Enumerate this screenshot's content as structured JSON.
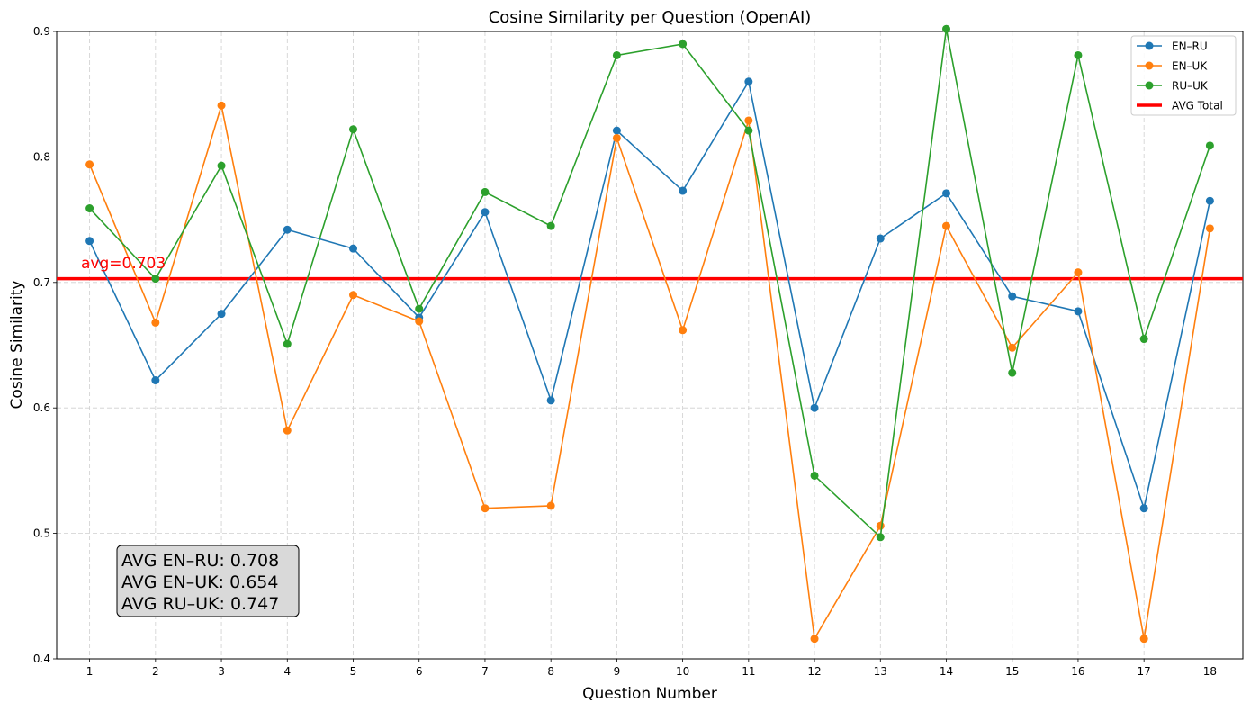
{
  "chart_data": {
    "type": "line",
    "title": "Cosine Similarity per Question (OpenAI)",
    "xlabel": "Question Number",
    "ylabel": "Cosine Similarity",
    "x": [
      1,
      2,
      3,
      4,
      5,
      6,
      7,
      8,
      9,
      10,
      11,
      12,
      13,
      14,
      15,
      16,
      17,
      18
    ],
    "xlim": [
      0.5,
      18.5
    ],
    "ylim": [
      0.4,
      0.9
    ],
    "yticks": [
      0.4,
      0.5,
      0.6,
      0.7,
      0.8,
      0.9
    ],
    "ytick_labels": [
      "0.4",
      "0.5",
      "0.6",
      "0.7",
      "0.8",
      "0.9"
    ],
    "grid": true,
    "legend_position": "top-right",
    "series": [
      {
        "name": "EN–RU",
        "color": "#1f77b4",
        "values": [
          0.733,
          0.622,
          0.675,
          0.742,
          0.727,
          0.672,
          0.756,
          0.606,
          0.821,
          0.773,
          0.86,
          0.6,
          0.735,
          0.771,
          0.689,
          0.677,
          0.52,
          0.765
        ]
      },
      {
        "name": "EN–UK",
        "color": "#ff7f0e",
        "values": [
          0.794,
          0.668,
          0.841,
          0.582,
          0.69,
          0.669,
          0.52,
          0.522,
          0.815,
          0.662,
          0.829,
          0.416,
          0.506,
          0.745,
          0.648,
          0.708,
          0.416,
          0.743
        ]
      },
      {
        "name": "RU–UK",
        "color": "#2ca02c",
        "values": [
          0.759,
          0.703,
          0.793,
          0.651,
          0.822,
          0.679,
          0.772,
          0.745,
          0.881,
          0.89,
          0.821,
          0.546,
          0.497,
          0.902,
          0.628,
          0.881,
          0.655,
          0.809
        ]
      }
    ],
    "avg_line": {
      "name": "AVG Total",
      "value": 0.703,
      "label": "avg=0.703",
      "color": "#ff0000"
    },
    "stats_box": {
      "lines": [
        "AVG EN–RU: 0.708",
        "AVG EN–UK: 0.654",
        "AVG RU–UK: 0.747"
      ]
    }
  }
}
